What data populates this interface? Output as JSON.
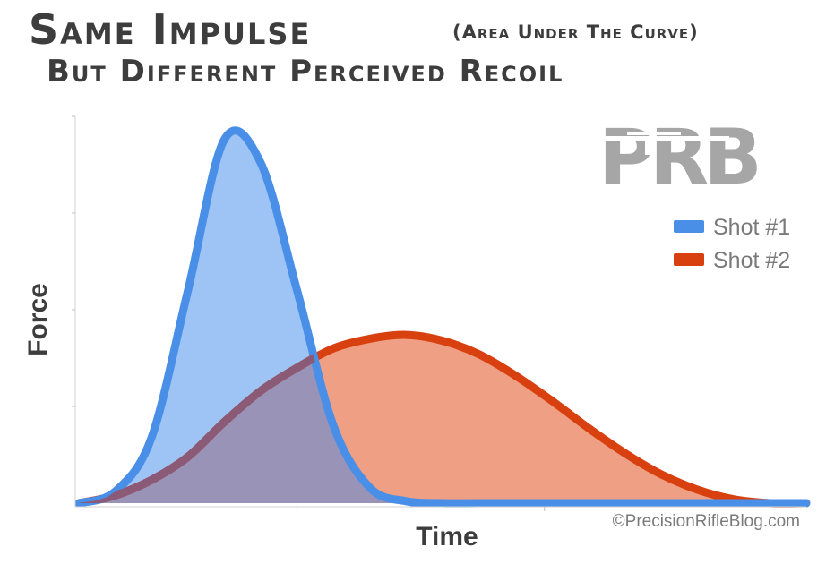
{
  "title": {
    "main": "Same Impulse",
    "paren": "(Area Under The Curve)",
    "subtitle": "But Different Perceived Recoil"
  },
  "logo": {
    "text": "PRB"
  },
  "copyright": "©PrecisionRifleBlog.com",
  "colors": {
    "shot1_line": "#4a8fe7",
    "shot1_fill": "#9ec4f5",
    "shot2_line": "#d9400f",
    "shot2_fill": "#ee9f84",
    "overlap_fill": "#9a93b8",
    "text": "#3d3d3d"
  },
  "chart_data": {
    "type": "area",
    "title": "Same Impulse (Area Under The Curve) But Different Perceived Recoil",
    "xlabel": "Time",
    "ylabel": "Force",
    "x_ticks_labeled": false,
    "y_ticks_labeled": false,
    "grid": false,
    "legend": "right",
    "xlim": [
      0,
      100
    ],
    "ylim": [
      0,
      100
    ],
    "series": [
      {
        "name": "Shot #1",
        "x": [
          0,
          5,
          10,
          15,
          20,
          25,
          30,
          35,
          40,
          45,
          50,
          55,
          60,
          70,
          80,
          90,
          100
        ],
        "y": [
          0,
          3,
          17,
          55,
          94,
          88,
          55,
          20,
          4,
          0.5,
          0,
          0,
          0,
          0,
          0,
          0,
          0
        ]
      },
      {
        "name": "Shot #2",
        "x": [
          0,
          5,
          10,
          15,
          20,
          25,
          30,
          35,
          40,
          45,
          50,
          55,
          60,
          65,
          70,
          75,
          80,
          85,
          90,
          95,
          100
        ],
        "y": [
          0,
          2,
          6,
          12,
          21,
          29,
          35,
          40,
          42.5,
          43.5,
          42,
          38.5,
          33,
          26.5,
          19.5,
          13,
          7.5,
          3.5,
          1,
          0,
          0
        ]
      }
    ]
  }
}
